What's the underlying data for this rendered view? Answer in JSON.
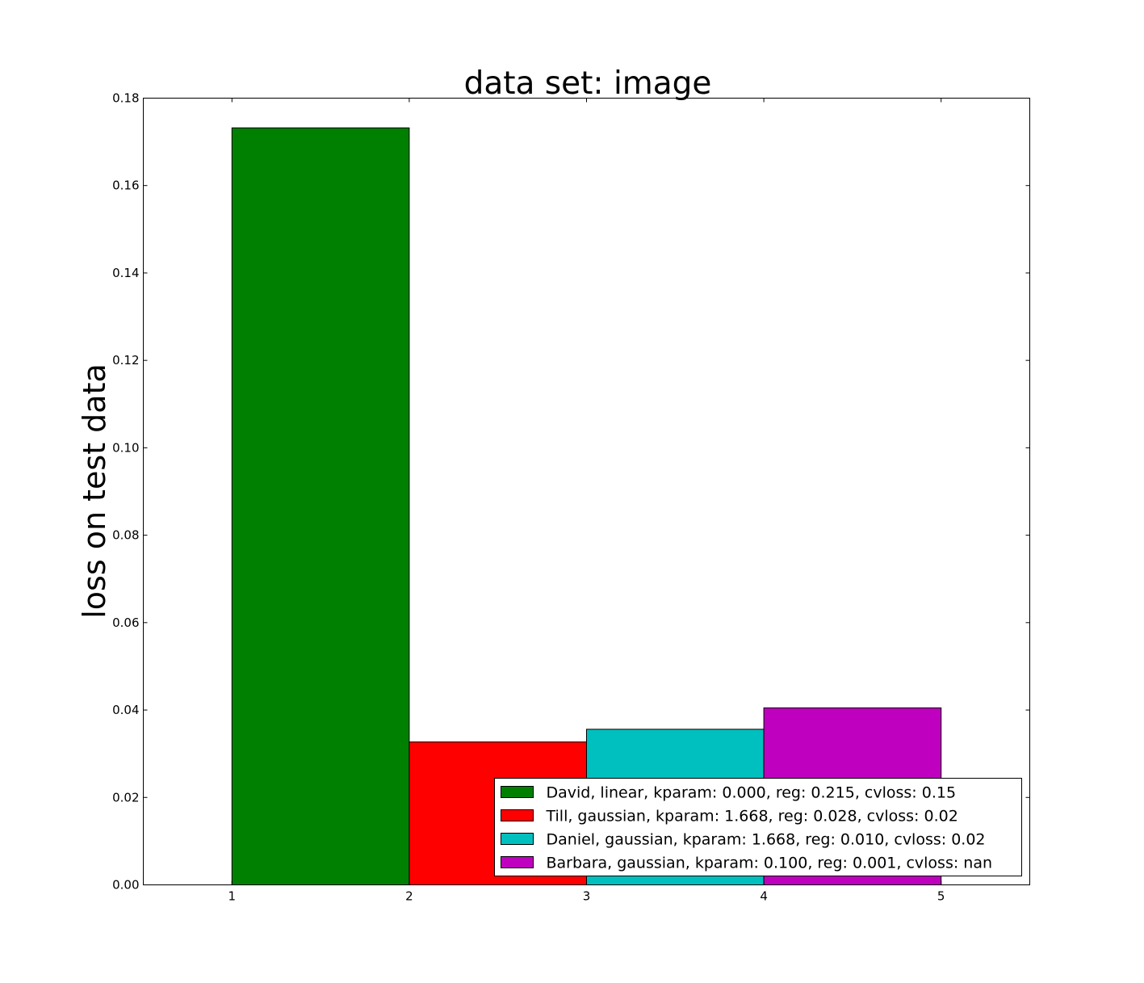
{
  "chart_data": {
    "type": "bar",
    "title": "data set: image",
    "xlabel": "",
    "ylabel": "loss on test data",
    "xlim": [
      0.5,
      5.5
    ],
    "ylim": [
      0,
      0.18
    ],
    "xticks": [
      "1",
      "2",
      "3",
      "4",
      "5"
    ],
    "yticks": [
      "0.00",
      "0.02",
      "0.04",
      "0.06",
      "0.08",
      "0.10",
      "0.12",
      "0.14",
      "0.16",
      "0.18"
    ],
    "grid": false,
    "legend_position": "lower-right",
    "series": [
      {
        "name": "David, linear, kparam: 0.000, reg: 0.215, cvloss: 0.15",
        "x_start": 1,
        "x_end": 2,
        "value": 0.1732,
        "color": "#008000"
      },
      {
        "name": "Till, gaussian, kparam: 1.668, reg: 0.028, cvloss: 0.02",
        "x_start": 2,
        "x_end": 3,
        "value": 0.0327,
        "color": "#ff0000"
      },
      {
        "name": "Daniel, gaussian, kparam: 1.668, reg: 0.010, cvloss: 0.02",
        "x_start": 3,
        "x_end": 4,
        "value": 0.0356,
        "color": "#00bfbf"
      },
      {
        "name": "Barbara, gaussian, kparam: 0.100, reg: 0.001, cvloss: nan",
        "x_start": 4,
        "x_end": 5,
        "value": 0.0405,
        "color": "#bf00bf"
      }
    ]
  }
}
